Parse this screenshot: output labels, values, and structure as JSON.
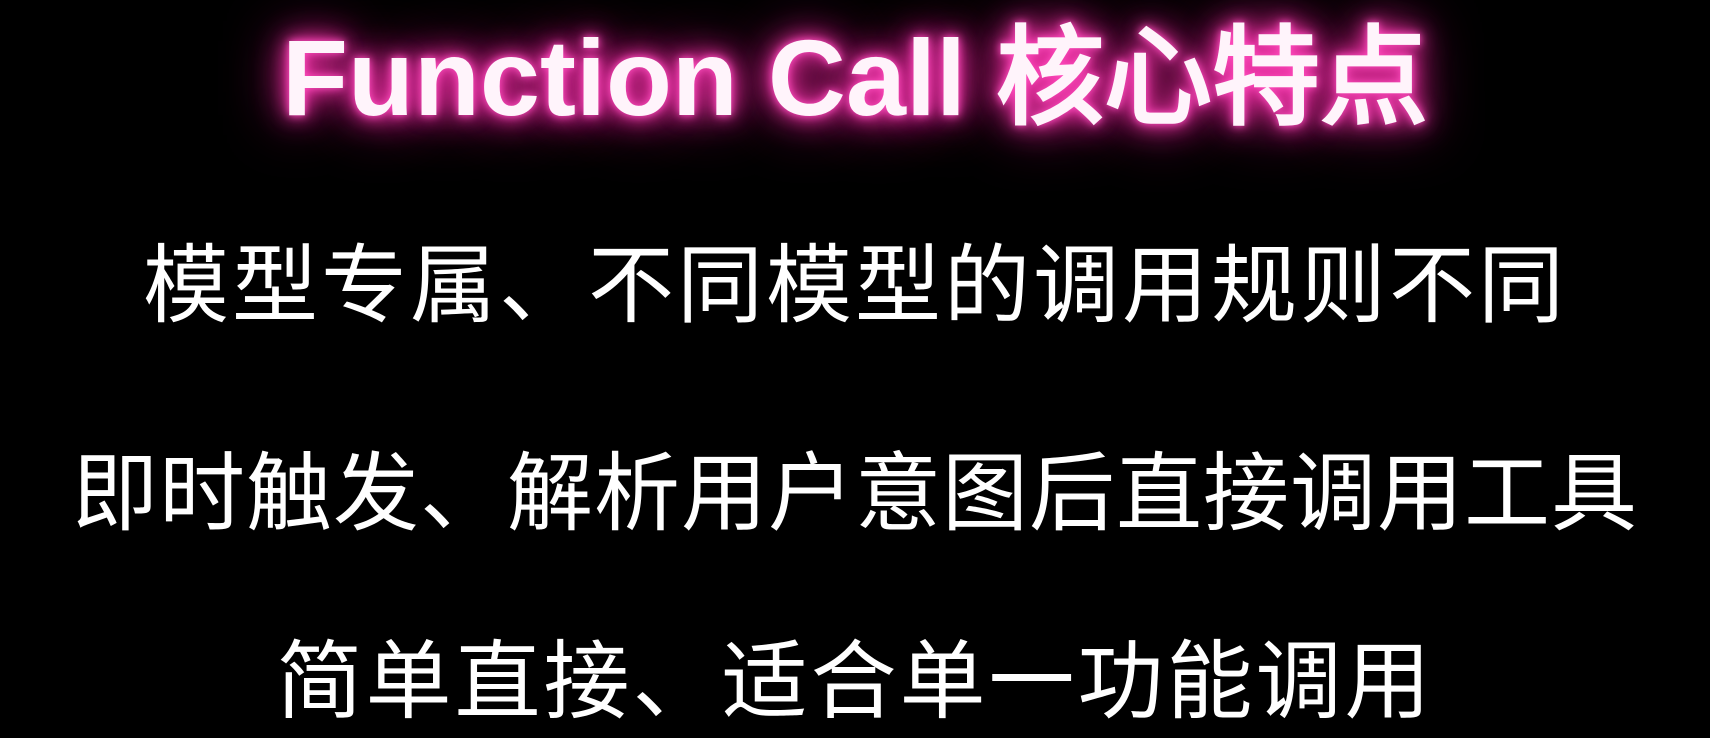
{
  "slide": {
    "title": "Function Call 核心特点",
    "bullets": [
      "模型专属、不同模型的调用规则不同",
      "即时触发、解析用户意图后直接调用工具",
      "简单直接、适合单一功能调用"
    ]
  },
  "colors": {
    "background": "#000000",
    "title_glow": "#ff3fb7",
    "text": "#ffffff"
  }
}
